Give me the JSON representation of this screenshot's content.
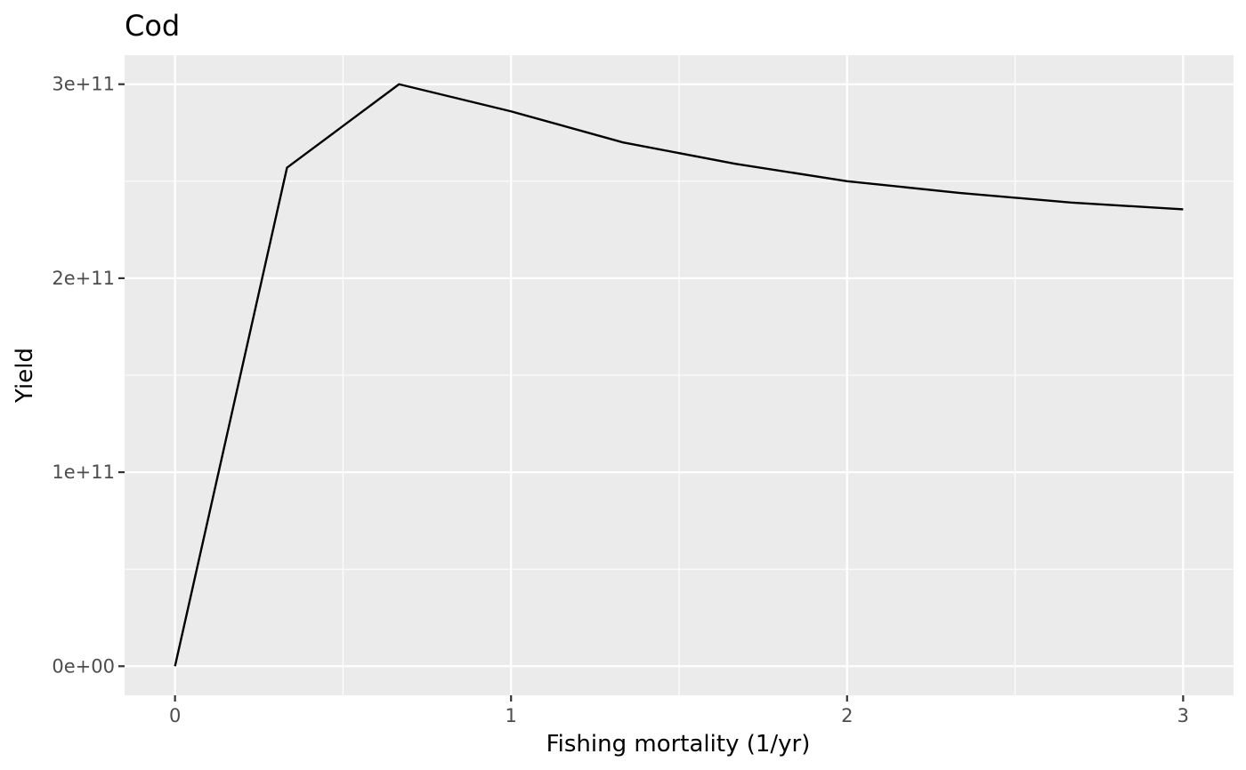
{
  "chart_data": {
    "type": "line",
    "title": "Cod",
    "xlabel": "Fishing mortality (1/yr)",
    "ylabel": "Yield",
    "xlim": [
      -0.15,
      3.15
    ],
    "ylim": [
      -15000000000.0,
      315000000000.0
    ],
    "x_ticks": [
      0,
      1,
      2,
      3
    ],
    "x_tick_labels": [
      "0",
      "1",
      "2",
      "3"
    ],
    "x_minor_ticks": [
      0.5,
      1.5,
      2.5
    ],
    "y_ticks": [
      0,
      100000000000.0,
      200000000000.0,
      300000000000.0
    ],
    "y_tick_labels": [
      "0e+00",
      "1e+11",
      "2e+11",
      "3e+11"
    ],
    "y_minor_ticks": [
      50000000000.0,
      150000000000.0,
      250000000000.0
    ],
    "grid": true,
    "legend": "none",
    "series": [
      {
        "color": "#000000",
        "x": [
          0,
          0.3333,
          0.6667,
          1.0,
          1.3333,
          1.6667,
          2.0,
          2.3333,
          2.6667,
          3.0
        ],
        "y": [
          0,
          257000000000.0,
          300000000000.0,
          286000000000.0,
          270000000000.0,
          259000000000.0,
          250000000000.0,
          244000000000.0,
          239000000000.0,
          235500000000.0
        ]
      }
    ]
  },
  "colors": {
    "panel_background": "#ebebeb",
    "grid_major": "#ffffff",
    "grid_minor": "#ffffff",
    "tick_mark": "#333333",
    "line": "#000000"
  }
}
